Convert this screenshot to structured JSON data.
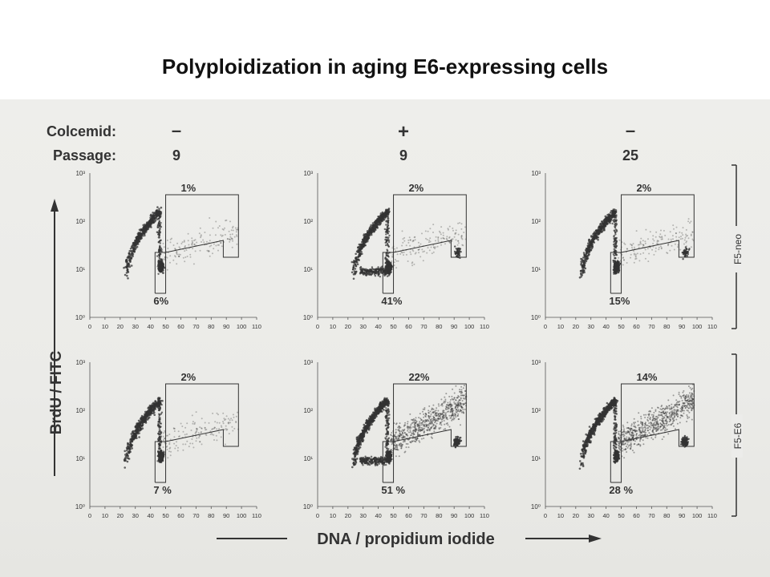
{
  "title": "Polyploidization in aging E6-expressing cells",
  "conditions": {
    "colcemid_label": "Colcemid:",
    "passage_label": "Passage:",
    "columns": [
      {
        "colcemid": "–",
        "passage": "9"
      },
      {
        "colcemid": "+",
        "passage": "9"
      },
      {
        "colcemid": "–",
        "passage": "25"
      }
    ]
  },
  "row_labels": [
    "F5-neo",
    "F5-E6"
  ],
  "colors": {
    "ink": "#222222",
    "dots": "#333333",
    "background": "#ececea"
  },
  "chart_data": {
    "type": "scatter",
    "xlabel": "DNA / propidium iodide",
    "ylabel": "BrdU / FITC",
    "x_ticks": [
      "0",
      "10",
      "20",
      "30",
      "40",
      "50",
      "60",
      "70",
      "80",
      "90",
      "100",
      "110"
    ],
    "y_ticks": [
      "10⁰",
      "10¹",
      "10²",
      "10³"
    ],
    "xlim": [
      0,
      110
    ],
    "ylim_log10": [
      0,
      3
    ],
    "panels": [
      {
        "row": "F5-neo",
        "column": 1,
        "upper_gate_pct": "1%",
        "lower_gate_pct": "6%",
        "g1_peak": 47,
        "g2_peak": 0,
        "s_phase": "low"
      },
      {
        "row": "F5-neo",
        "column": 2,
        "upper_gate_pct": "2%",
        "lower_gate_pct": "41%",
        "g1_peak": 47,
        "g2_peak": 92,
        "s_phase": "low"
      },
      {
        "row": "F5-neo",
        "column": 3,
        "upper_gate_pct": "2%",
        "lower_gate_pct": "15%",
        "g1_peak": 47,
        "g2_peak": 92,
        "s_phase": "low"
      },
      {
        "row": "F5-E6",
        "column": 1,
        "upper_gate_pct": "2%",
        "lower_gate_pct": "7 %",
        "g1_peak": 47,
        "g2_peak": 0,
        "s_phase": "low"
      },
      {
        "row": "F5-E6",
        "column": 2,
        "upper_gate_pct": "22%",
        "lower_gate_pct": "51 %",
        "g1_peak": 47,
        "g2_peak": 92,
        "s_phase": "high"
      },
      {
        "row": "F5-E6",
        "column": 3,
        "upper_gate_pct": "14%",
        "lower_gate_pct": "28 %",
        "g1_peak": 47,
        "g2_peak": 92,
        "s_phase": "high"
      }
    ]
  }
}
